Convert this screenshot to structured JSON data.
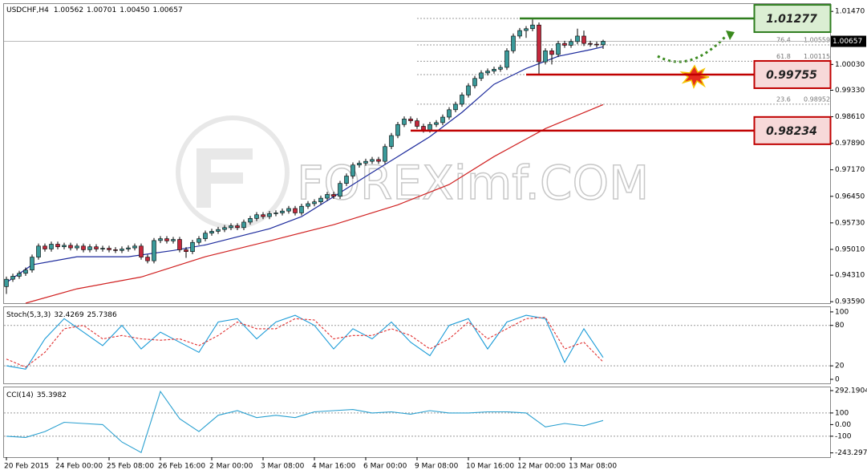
{
  "chart_data": [
    {
      "type": "candlestick",
      "symbol": "USDCHF,H4",
      "ohlc": [
        1.00562,
        1.00701,
        {
          "value": 1.0045,
          "label": "1.00450"
        },
        1.00657
      ],
      "watermark": "FOREXimf.COM",
      "xlim": [
        -0.375,
        128.375
      ],
      "ylim": [
        0.9355,
        1.0167
      ],
      "yticks": [
        {
          "value": 1.0147,
          "label": "1.01470"
        },
        {
          "value": 1.0003,
          "label": "1.00030"
        },
        {
          "value": 0.9933,
          "label": "0.99330"
        },
        {
          "value": 0.9861,
          "label": "0.98610"
        },
        {
          "value": 0.9789,
          "label": "0.97890"
        },
        {
          "value": 0.9717,
          "label": "0.97170"
        },
        {
          "value": 0.9645,
          "label": "0.96450"
        },
        {
          "value": 0.9573,
          "label": "0.95730"
        },
        {
          "value": 0.9501,
          "label": "0.95010"
        },
        {
          "value": 0.9431,
          "label": "0.94310"
        },
        {
          "value": 0.9359,
          "label": "0.93590"
        }
      ],
      "xticks": [
        {
          "value": 0,
          "label": "20 Feb 2015"
        },
        {
          "value": 8,
          "label": "24 Feb 00:00"
        },
        {
          "value": 16,
          "label": "25 Feb 08:00"
        },
        {
          "value": 24,
          "label": "26 Feb 16:00"
        },
        {
          "value": 32,
          "label": "2 Mar 00:00"
        },
        {
          "value": 40,
          "label": "3 Mar 08:00"
        },
        {
          "value": 48,
          "label": "4 Mar 16:00"
        },
        {
          "value": 56,
          "label": "6 Mar 00:00"
        },
        {
          "value": 64,
          "label": "9 Mar 08:00"
        },
        {
          "value": 72,
          "label": "10 Mar 16:00"
        },
        {
          "value": 80,
          "label": "12 Mar 00:00"
        },
        {
          "value": 88,
          "label": "13 Mar 08:00"
        }
      ],
      "up_color": "#3a9a9a",
      "down_color": "#c4283c",
      "candles": [
        [
          0.94,
          0.9427,
          0.938,
          0.942
        ],
        [
          0.942,
          0.9435,
          0.9413,
          0.9428
        ],
        [
          0.9428,
          0.9443,
          0.9421,
          0.9436
        ],
        [
          0.9436,
          0.9452,
          0.9429,
          0.9445
        ],
        [
          0.9445,
          0.9487,
          0.9438,
          0.948
        ],
        [
          0.948,
          0.9517,
          0.9473,
          0.951
        ],
        [
          0.951,
          0.9517,
          0.9495,
          0.9502
        ],
        [
          0.9502,
          0.9522,
          0.9495,
          0.9515
        ],
        [
          0.9515,
          0.9522,
          0.9501,
          0.9508
        ],
        [
          0.9508,
          0.9519,
          0.9501,
          0.9512
        ],
        [
          0.9512,
          0.9519,
          0.9498,
          0.9505
        ],
        [
          0.9505,
          0.9517,
          0.9498,
          0.951
        ],
        [
          0.951,
          0.9517,
          0.9493,
          0.95
        ],
        [
          0.95,
          0.9515,
          0.9493,
          0.9508
        ],
        [
          0.9508,
          0.9515,
          0.9495,
          0.9502
        ],
        [
          0.9502,
          0.9511,
          0.9495,
          0.9504
        ],
        [
          0.9504,
          0.9511,
          0.9493,
          0.95
        ],
        [
          0.95,
          0.9507,
          0.9491,
          0.9498
        ],
        [
          0.9498,
          0.9509,
          0.9491,
          0.9502
        ],
        [
          0.9502,
          0.9512,
          0.9495,
          0.9505
        ],
        [
          0.9505,
          0.9517,
          0.9498,
          0.951
        ],
        [
          0.951,
          0.9517,
          0.9473,
          0.948
        ],
        [
          0.948,
          0.9487,
          0.9463,
          0.947
        ],
        [
          0.947,
          0.9532,
          0.9463,
          0.9525
        ],
        [
          0.9525,
          0.9537,
          0.9518,
          0.953
        ],
        [
          0.953,
          0.9537,
          0.9517,
          0.9524
        ],
        [
          0.9524,
          0.9535,
          0.9517,
          0.9528
        ],
        [
          0.9528,
          0.9535,
          0.9493,
          0.95
        ],
        [
          0.95,
          0.9507,
          0.9478,
          0.9495
        ],
        [
          0.9495,
          0.9527,
          0.9488,
          0.952
        ],
        [
          0.952,
          0.9537,
          0.9513,
          0.953
        ],
        [
          0.953,
          0.9552,
          0.9523,
          0.9545
        ],
        [
          0.9545,
          0.9557,
          0.9538,
          0.955
        ],
        [
          0.955,
          0.9562,
          0.9543,
          0.9555
        ],
        [
          0.9555,
          0.9567,
          0.9548,
          0.956
        ],
        [
          0.956,
          0.9572,
          0.9553,
          0.9565
        ],
        [
          0.9565,
          0.9572,
          0.9553,
          0.956
        ],
        [
          0.956,
          0.9582,
          0.9553,
          0.9575
        ],
        [
          0.9575,
          0.9592,
          0.9568,
          0.9585
        ],
        [
          0.9585,
          0.9602,
          0.9578,
          0.9595
        ],
        [
          0.9595,
          0.9602,
          0.9583,
          0.959
        ],
        [
          0.959,
          0.9605,
          0.9583,
          0.9598
        ],
        [
          0.9598,
          0.9607,
          0.9591,
          0.96
        ],
        [
          0.96,
          0.9612,
          0.9593,
          0.9605
        ],
        [
          0.9605,
          0.9619,
          0.9598,
          0.9612
        ],
        [
          0.9612,
          0.9619,
          0.9593,
          0.96
        ],
        [
          0.96,
          0.9625,
          0.9593,
          0.9618
        ],
        [
          0.9618,
          0.9632,
          0.9611,
          0.9625
        ],
        [
          0.9625,
          0.9637,
          0.9618,
          0.963
        ],
        [
          0.963,
          0.9647,
          0.9623,
          0.964
        ],
        [
          0.964,
          0.9657,
          0.9633,
          0.965
        ],
        [
          0.965,
          0.9657,
          0.9638,
          0.9645
        ],
        [
          0.9645,
          0.9687,
          0.9638,
          0.968
        ],
        [
          0.968,
          0.9707,
          0.9673,
          0.97
        ],
        [
          0.97,
          0.9737,
          0.9693,
          0.973
        ],
        [
          0.973,
          0.9742,
          0.9723,
          0.9735
        ],
        [
          0.9735,
          0.9747,
          0.9728,
          0.974
        ],
        [
          0.974,
          0.9752,
          0.9733,
          0.9745
        ],
        [
          0.9745,
          0.9752,
          0.9733,
          0.974
        ],
        [
          0.974,
          0.9787,
          0.9733,
          0.978
        ],
        [
          0.978,
          0.9817,
          0.9773,
          0.981
        ],
        [
          0.981,
          0.9847,
          0.9803,
          0.984
        ],
        [
          0.984,
          0.9862,
          0.9833,
          0.9855
        ],
        [
          0.9855,
          0.9862,
          0.9843,
          0.985
        ],
        [
          0.985,
          0.9857,
          0.9828,
          0.9835
        ],
        [
          0.9835,
          0.9842,
          0.9818,
          0.9825
        ],
        [
          0.9825,
          0.9847,
          0.9818,
          0.984
        ],
        [
          0.984,
          0.9852,
          0.9833,
          0.9845
        ],
        [
          0.9845,
          0.9867,
          0.9838,
          0.986
        ],
        [
          0.986,
          0.9887,
          0.9853,
          0.988
        ],
        [
          0.988,
          0.9902,
          0.9873,
          0.9895
        ],
        [
          0.9895,
          0.9927,
          0.9888,
          0.992
        ],
        [
          0.992,
          0.9952,
          0.9913,
          0.9945
        ],
        [
          0.9945,
          0.9972,
          0.9938,
          0.9965
        ],
        [
          0.9965,
          0.9987,
          0.9958,
          0.998
        ],
        [
          0.998,
          0.9992,
          0.9973,
          0.9985
        ],
        [
          0.9985,
          0.9997,
          0.9978,
          0.999
        ],
        [
          0.999,
          1.0002,
          0.9983,
          0.9995
        ],
        [
          0.9995,
          1.0047,
          0.9988,
          1.004
        ],
        [
          1.004,
          1.0087,
          1.0033,
          1.008
        ],
        [
          1.008,
          1.0102,
          1.0073,
          1.0095
        ],
        [
          1.0095,
          1.0107,
          1.0075,
          1.01
        ],
        [
          1.01,
          1.0128,
          1.0093,
          1.011
        ],
        [
          1.011,
          1.0117,
          0.9976,
          1.001
        ],
        [
          1.001,
          1.0047,
          1.0003,
          1.004
        ],
        [
          1.004,
          1.0047,
          1.0003,
          1.003
        ],
        [
          1.003,
          1.0067,
          1.0023,
          1.006
        ],
        [
          1.006,
          1.0067,
          1.0048,
          1.0055
        ],
        [
          1.0055,
          1.0072,
          1.0048,
          1.0065
        ],
        [
          1.0065,
          1.01,
          1.0058,
          1.008
        ],
        [
          1.008,
          1.0095,
          1.0053,
          1.006
        ],
        [
          1.006,
          1.0067,
          1.0051,
          1.0058
        ],
        [
          1.0058,
          1.0065,
          1.0049,
          1.0056
        ],
        [
          1.00562,
          1.00701,
          1.0045,
          1.00657
        ]
      ],
      "lines": [
        {
          "color": "#1c2a9c",
          "x": [
            0,
            4,
            11,
            19,
            26,
            31,
            36,
            41,
            46,
            51,
            56,
            61,
            66,
            71,
            76,
            81,
            86,
            91,
            93
          ],
          "values": [
            0.9411,
            0.9459,
            0.9481,
            0.9481,
            0.9498,
            0.9513,
            0.9535,
            0.9557,
            0.959,
            0.9644,
            0.9699,
            0.9753,
            0.9807,
            0.9873,
            0.9949,
            0.9992,
            1.0025,
            1.0043,
            1.0051
          ]
        },
        {
          "color": "#d02020",
          "x": [
            3,
            11,
            21,
            31,
            41,
            51,
            61,
            69,
            76,
            84,
            93
          ],
          "values": [
            0.9355,
            0.9394,
            0.9426,
            0.9481,
            0.9524,
            0.9568,
            0.9622,
            0.9677,
            0.9753,
            0.9829,
            0.9894
          ]
        }
      ],
      "current_price": 1.00657,
      "fib_from": 64,
      "fib": [
        {
          "level": 76.4,
          "price": 1.00559
        },
        {
          "level": 61.8,
          "price": 1.00115
        },
        {
          "level": 23.6,
          "price": 0.98952
        }
      ],
      "levels": [
        {
          "value": 1.01277,
          "from": 80,
          "color": "#2e7d1e",
          "box": "#dbeed3"
        },
        {
          "value": 0.99755,
          "from": 81,
          "color": "#c00000",
          "box": "#f7d9d9"
        },
        {
          "value": 0.98234,
          "from": 63,
          "color": "#c00000",
          "box": "#f7d9d9"
        }
      ]
    },
    {
      "type": "line",
      "label": "Stoch(5,3,3)",
      "xlim": [
        -0.375,
        128.375
      ],
      "ylim": [
        -6,
        107
      ],
      "yticks": [
        100,
        80,
        20,
        0
      ],
      "level_lines": [
        80,
        20
      ],
      "x": [
        0,
        3,
        6,
        9,
        12,
        15,
        18,
        21,
        24,
        27,
        30,
        33,
        36,
        39,
        42,
        45,
        48,
        51,
        54,
        57,
        60,
        63,
        66,
        69,
        72,
        75,
        78,
        81,
        84,
        87,
        90,
        93
      ],
      "series": [
        {
          "color": "#1a9bd7",
          "style": "solid",
          "values": [
            20,
            15,
            60,
            90,
            70,
            50,
            80,
            45,
            70,
            55,
            40,
            85,
            90,
            60,
            85,
            95,
            80,
            45,
            75,
            60,
            85,
            55,
            35,
            80,
            90,
            45,
            85,
            95,
            90,
            25,
            75,
            32.4269
          ]
        },
        {
          "color": "#e03030",
          "style": "dashed",
          "values": [
            30,
            18,
            40,
            75,
            80,
            60,
            65,
            60,
            58,
            60,
            50,
            65,
            85,
            75,
            75,
            90,
            88,
            60,
            65,
            65,
            75,
            65,
            45,
            60,
            85,
            60,
            75,
            90,
            92,
            45,
            55,
            25.7386
          ]
        }
      ]
    },
    {
      "type": "line",
      "label": "CCI(14)",
      "xlim": [
        -0.375,
        128.375
      ],
      "ylim": [
        -280,
        320
      ],
      "yticks": [
        292.1904,
        100,
        {
          "value": 0,
          "label": "0.00"
        },
        -100,
        -243.297
      ],
      "level_lines": [
        100,
        -100
      ],
      "x": [
        0,
        3,
        6,
        9,
        12,
        15,
        18,
        21,
        24,
        27,
        30,
        33,
        36,
        39,
        42,
        45,
        48,
        51,
        54,
        57,
        60,
        63,
        66,
        69,
        72,
        75,
        78,
        81,
        84,
        87,
        90,
        93
      ],
      "series": [
        {
          "color": "#2aa0d0",
          "style": "solid",
          "values": [
            -100,
            -110,
            -60,
            20,
            10,
            0,
            -150,
            -240,
            285,
            50,
            -60,
            80,
            120,
            60,
            80,
            60,
            110,
            120,
            130,
            100,
            110,
            90,
            120,
            100,
            100,
            110,
            110,
            100,
            -20,
            10,
            -10,
            35.3982
          ]
        }
      ]
    }
  ]
}
